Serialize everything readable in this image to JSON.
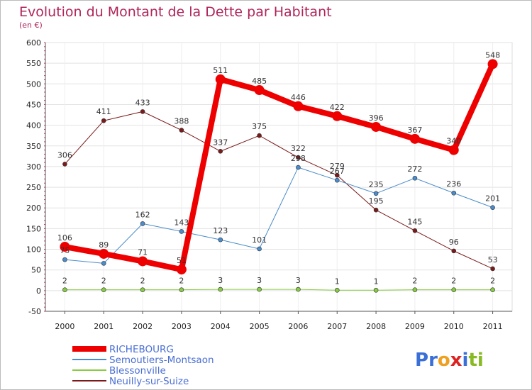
{
  "chart_data": {
    "type": "line",
    "title": "Evolution du Montant de la Dette par Habitant",
    "subtitle": "(en €)",
    "xlabel": "",
    "ylabel": "",
    "categories": [
      "2000",
      "2001",
      "2002",
      "2003",
      "2004",
      "2005",
      "2006",
      "2007",
      "2008",
      "2009",
      "2010",
      "2011"
    ],
    "ylim": [
      -50,
      600
    ],
    "yticks": [
      -50,
      0,
      50,
      100,
      150,
      200,
      250,
      300,
      350,
      400,
      450,
      500,
      550,
      600
    ],
    "grid": true,
    "legend_position": "bottom-left",
    "series": [
      {
        "name": "Neuilly-sur-Suize",
        "color": "#7b1a1a",
        "width": 1,
        "marker": 3,
        "values": [
          306,
          411,
          433,
          388,
          337,
          375,
          322,
          279,
          195,
          145,
          96,
          53
        ]
      },
      {
        "name": "Semoutiers-Montsaon",
        "color": "#4a8ccc",
        "width": 1,
        "marker": 3,
        "values": [
          75,
          66,
          162,
          143,
          123,
          101,
          298,
          267,
          235,
          272,
          236,
          201
        ]
      },
      {
        "name": "Blessonville",
        "color": "#88cc44",
        "width": 1,
        "marker": 3,
        "values": [
          2,
          2,
          2,
          2,
          3,
          3,
          3,
          1,
          1,
          2,
          2,
          2
        ]
      },
      {
        "name": "RICHEBOURG",
        "color": "#ee0000",
        "width": 8,
        "marker": 7,
        "values": [
          106,
          89,
          71,
          51,
          511,
          485,
          446,
          422,
          396,
          367,
          340,
          548
        ]
      }
    ],
    "labels": {
      "Neuilly-sur-Suize": [
        "306",
        "411",
        "433",
        "388",
        "337",
        "375",
        "322",
        "279",
        "195",
        "145",
        "96",
        "53"
      ],
      "Semoutiers-Montsaon": [
        "75",
        "",
        "162",
        "143",
        "123",
        "101",
        "298",
        "267",
        "235",
        "272",
        "236",
        "201"
      ],
      "Blessonville": [
        "2",
        "2",
        "2",
        "2",
        "3",
        "3",
        "3",
        "1",
        "1",
        "2",
        "2",
        "2"
      ],
      "RICHEBOURG": [
        "106",
        "89",
        "71",
        "51",
        "511",
        "485",
        "446",
        "422",
        "396",
        "367",
        "340",
        "548"
      ]
    },
    "legend_order": [
      "RICHEBOURG",
      "Semoutiers-Montsaon",
      "Blessonville",
      "Neuilly-sur-Suize"
    ]
  },
  "brand": {
    "logo_text": "Proxiti",
    "title_color": "#b0245a",
    "legend_text_color": "#4a6fd4"
  }
}
